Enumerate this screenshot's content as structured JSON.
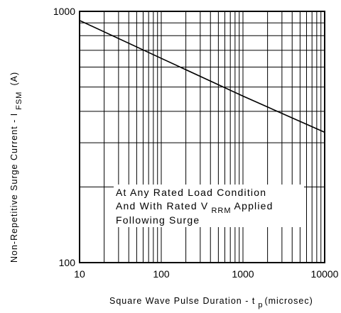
{
  "chart_data": {
    "type": "line",
    "x_scale": "log",
    "y_scale": "log",
    "xlim": [
      10,
      10000
    ],
    "ylim": [
      100,
      1000
    ],
    "grid": true,
    "x_ticks": [
      "10",
      "100",
      "1000",
      "10000"
    ],
    "y_ticks": [
      "1000",
      "100"
    ],
    "xlabel": {
      "main": "Square Wave Pulse Duration - t",
      "sub": "p",
      "unit": "(microsec)"
    },
    "ylabel": {
      "main": "Non-Repetitive Surge Current - I",
      "sub": "FSM",
      "unit": "(A)"
    },
    "series": [
      {
        "x": [
          10,
          100,
          1000,
          10000
        ],
        "y": [
          920,
          650,
          460,
          330
        ]
      }
    ],
    "annotation": {
      "line1": "At Any Rated Load Condition",
      "line2_pre": "And With Rated V",
      "line2_sub": "RRM",
      "line2_post": "Applied",
      "line3": "Following Surge"
    }
  }
}
